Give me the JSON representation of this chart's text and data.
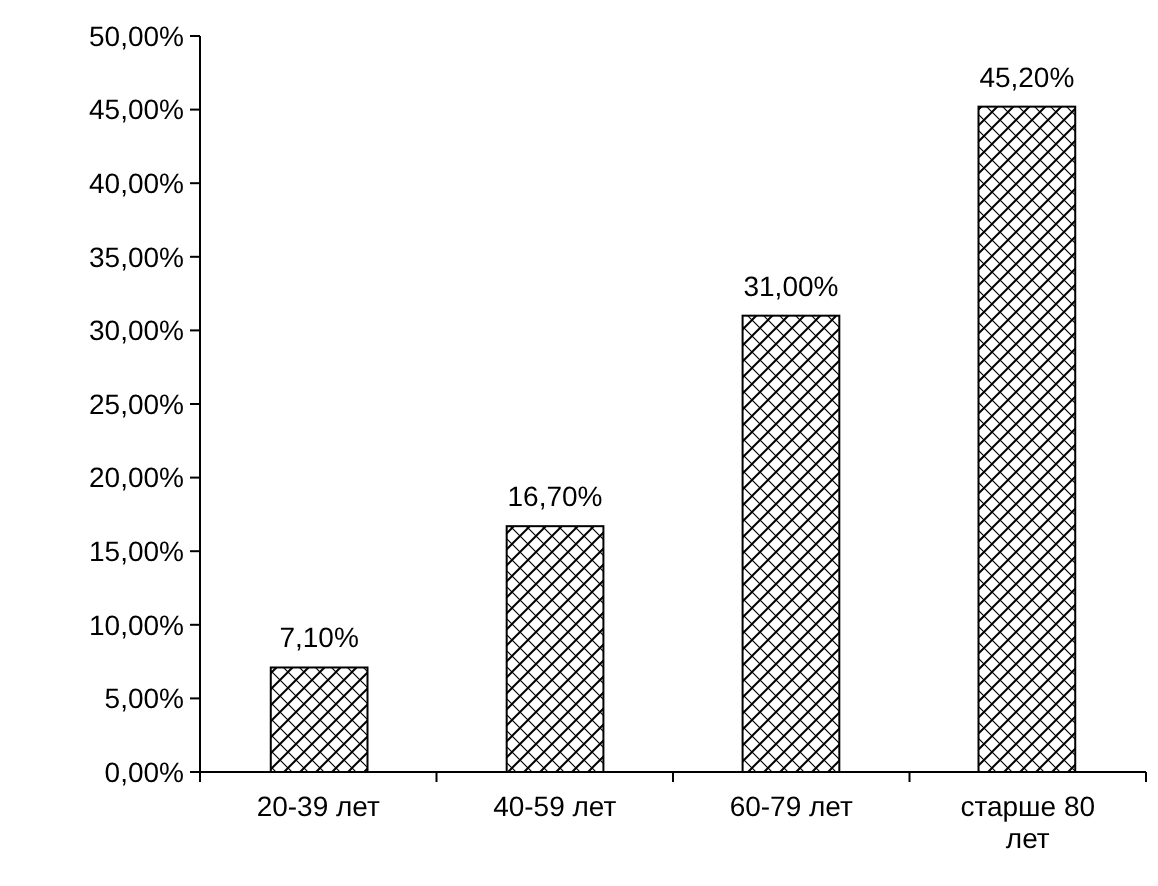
{
  "chart_data": {
    "type": "bar",
    "categories": [
      "20-39 лет",
      "40-59 лет",
      "60-79 лет",
      "старше 80 лет"
    ],
    "values": [
      7.1,
      16.7,
      31.0,
      45.2
    ],
    "value_labels": [
      "7,10%",
      "16,70%",
      "31,00%",
      "45,20%"
    ],
    "color": "#000000",
    "ylim": [
      0,
      50
    ],
    "yticks": [
      {
        "value": 0,
        "label": "0,00%"
      },
      {
        "value": 5,
        "label": "5,00%"
      },
      {
        "value": 10,
        "label": "10,00%"
      },
      {
        "value": 15,
        "label": "15,00%"
      },
      {
        "value": 20,
        "label": "20,00%"
      },
      {
        "value": 25,
        "label": "25,00%"
      },
      {
        "value": 30,
        "label": "30,00%"
      },
      {
        "value": 35,
        "label": "35,00%"
      },
      {
        "value": 40,
        "label": "40,00%"
      },
      {
        "value": 45,
        "label": "45,00%"
      },
      {
        "value": 50,
        "label": "50,00%"
      }
    ],
    "grid": false
  }
}
